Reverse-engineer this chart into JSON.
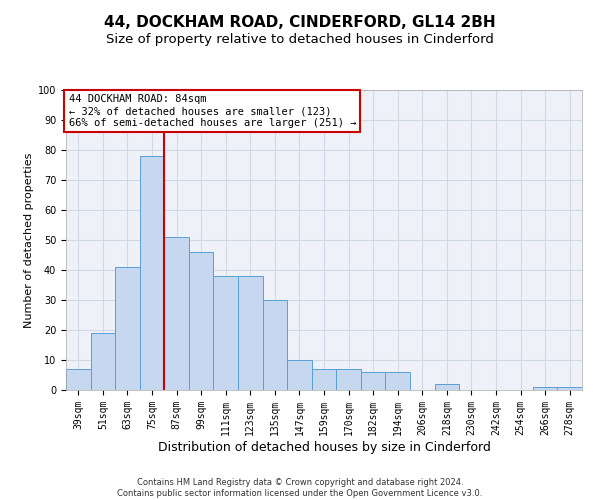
{
  "title": "44, DOCKHAM ROAD, CINDERFORD, GL14 2BH",
  "subtitle": "Size of property relative to detached houses in Cinderford",
  "xlabel": "Distribution of detached houses by size in Cinderford",
  "ylabel": "Number of detached properties",
  "categories": [
    "39sqm",
    "51sqm",
    "63sqm",
    "75sqm",
    "87sqm",
    "99sqm",
    "111sqm",
    "123sqm",
    "135sqm",
    "147sqm",
    "159sqm",
    "170sqm",
    "182sqm",
    "194sqm",
    "206sqm",
    "218sqm",
    "230sqm",
    "242sqm",
    "254sqm",
    "266sqm",
    "278sqm"
  ],
  "values": [
    7,
    19,
    41,
    78,
    51,
    46,
    38,
    38,
    30,
    10,
    7,
    7,
    6,
    6,
    0,
    2,
    0,
    0,
    0,
    1,
    1
  ],
  "bar_color": "#c5d8f0",
  "bar_edgecolor": "#5a9fd4",
  "redline_index": 4,
  "annotation_text": "44 DOCKHAM ROAD: 84sqm\n← 32% of detached houses are smaller (123)\n66% of semi-detached houses are larger (251) →",
  "annotation_box_edgecolor": "#cc0000",
  "redline_color": "#cc0000",
  "ylim": [
    0,
    100
  ],
  "yticks": [
    0,
    10,
    20,
    30,
    40,
    50,
    60,
    70,
    80,
    90,
    100
  ],
  "grid_color": "#d0d8e8",
  "background_color": "#eef2f8",
  "footer_line1": "Contains HM Land Registry data © Crown copyright and database right 2024.",
  "footer_line2": "Contains public sector information licensed under the Open Government Licence v3.0.",
  "title_fontsize": 11,
  "subtitle_fontsize": 9.5,
  "xlabel_fontsize": 9,
  "ylabel_fontsize": 8,
  "tick_fontsize": 7,
  "annotation_fontsize": 7.5,
  "footer_fontsize": 6
}
